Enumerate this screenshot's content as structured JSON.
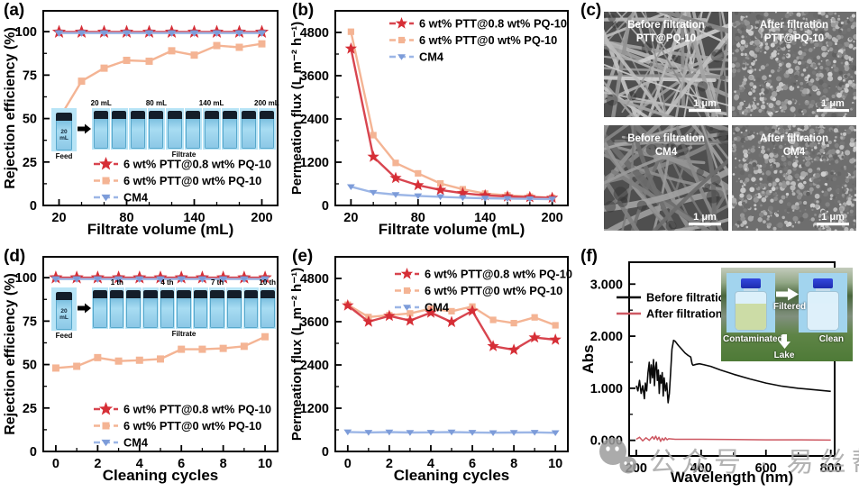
{
  "panels": {
    "a": {
      "label": "(a)"
    },
    "b": {
      "label": "(b)"
    },
    "c": {
      "label": "(c)"
    },
    "d": {
      "label": "(d)"
    },
    "e": {
      "label": "(e)"
    },
    "f": {
      "label": "(f)"
    }
  },
  "legend_labels": {
    "s1": "6 wt% PTT@0.8 wt% PQ-10",
    "s2": "6 wt% PTT@0 wt% PQ-10",
    "s3": "CM4"
  },
  "colors": {
    "red_marker": "#d62e36",
    "red_line": "#d8454f",
    "orange": "#f4b494",
    "blue_marker": "#7d9cd9",
    "blue_line": "#9cb6e6",
    "black": "#0a0a0a",
    "f_red": "#cd5862"
  },
  "chart_data": [
    {
      "id": "a",
      "type": "line",
      "xlabel": "Filtrate volume (mL)",
      "ylabel": "Rejection efficiency (%)",
      "xlim": [
        6,
        214
      ],
      "ylim": [
        0,
        112
      ],
      "xticks": [
        20,
        80,
        140,
        200
      ],
      "xminor": [
        40,
        60,
        100,
        120,
        160,
        180
      ],
      "yticks": [
        0,
        25,
        50,
        75,
        100
      ],
      "yminor": [
        12.5,
        37.5,
        62.5,
        87.5
      ],
      "x": [
        20,
        40,
        60,
        80,
        100,
        120,
        140,
        160,
        180,
        200
      ],
      "series": [
        {
          "name": "6 wt% PTT@0.8 wt% PQ-10",
          "marker": "star",
          "values": [
            99.8,
            99.8,
            99.8,
            99.8,
            99.8,
            99.8,
            99.8,
            99.8,
            99.8,
            99.8
          ]
        },
        {
          "name": "6 wt% PTT@0 wt% PQ-10",
          "marker": "square",
          "values": [
            50,
            71.5,
            79,
            83.5,
            83,
            89,
            86.5,
            92,
            91,
            93
          ]
        },
        {
          "name": "CM4",
          "marker": "tri",
          "values": [
            99.2,
            99.2,
            99.2,
            99.2,
            99.2,
            99.2,
            99.2,
            99.2,
            99.2,
            99.2
          ]
        }
      ],
      "legend_position": "bottom"
    },
    {
      "id": "b",
      "type": "line",
      "xlabel": "Filtrate volume (mL)",
      "ylabel": "Permeation flux (L m⁻² h⁻¹)",
      "xlim": [
        6,
        214
      ],
      "ylim": [
        0,
        5400
      ],
      "xticks": [
        20,
        80,
        140,
        200
      ],
      "xminor": [
        40,
        60,
        100,
        120,
        160,
        180
      ],
      "yticks": [
        0,
        1200,
        2400,
        3600,
        4800
      ],
      "yminor": [
        600,
        1800,
        3000,
        4200
      ],
      "x": [
        20,
        40,
        60,
        80,
        100,
        120,
        140,
        160,
        180,
        200
      ],
      "series": [
        {
          "name": "6 wt% PTT@0.8 wt% PQ-10",
          "marker": "star",
          "values": [
            4350,
            1350,
            760,
            560,
            430,
            340,
            280,
            250,
            230,
            210
          ]
        },
        {
          "name": "6 wt% PTT@0 wt% PQ-10",
          "marker": "square",
          "values": [
            4820,
            1950,
            1180,
            890,
            610,
            450,
            330,
            280,
            245,
            215
          ]
        },
        {
          "name": "CM4",
          "marker": "tri",
          "values": [
            520,
            360,
            300,
            265,
            240,
            215,
            200,
            190,
            182,
            175
          ]
        }
      ],
      "legend_position": "top"
    },
    {
      "id": "d",
      "type": "line",
      "xlabel": "Cleaning cycles",
      "ylabel": "Rejection efficiency (%)",
      "xlim": [
        -0.6,
        10.6
      ],
      "ylim": [
        0,
        112
      ],
      "xticks": [
        0,
        2,
        4,
        6,
        8,
        10
      ],
      "xminor": [
        1,
        3,
        5,
        7,
        9
      ],
      "yticks": [
        0,
        25,
        50,
        75,
        100
      ],
      "yminor": [
        12.5,
        37.5,
        62.5,
        87.5
      ],
      "x": [
        0,
        1,
        2,
        3,
        4,
        5,
        6,
        7,
        8,
        9,
        10
      ],
      "series": [
        {
          "name": "6 wt% PTT@0.8 wt% PQ-10",
          "marker": "star",
          "values": [
            100,
            100,
            100,
            100,
            100,
            100,
            100,
            100,
            100,
            100,
            100
          ]
        },
        {
          "name": "6 wt% PTT@0 wt% PQ-10",
          "marker": "square",
          "values": [
            48,
            49,
            54,
            52,
            52.5,
            53.2,
            58.8,
            58.8,
            59.3,
            60.5,
            66
          ]
        },
        {
          "name": "CM4",
          "marker": "tri",
          "values": [
            99.2,
            99.2,
            99.2,
            99.2,
            99.2,
            99.2,
            99.2,
            99.2,
            99.2,
            99.2,
            99.2
          ]
        }
      ],
      "legend_position": "bottom"
    },
    {
      "id": "e",
      "type": "line",
      "xlabel": "Cleaning cycles",
      "ylabel": "Permeation flux (L m⁻² h⁻¹)",
      "xlim": [
        -0.6,
        10.6
      ],
      "ylim": [
        0,
        5400
      ],
      "xticks": [
        0,
        2,
        4,
        6,
        8,
        10
      ],
      "xminor": [
        1,
        3,
        5,
        7,
        9
      ],
      "yticks": [
        0,
        1200,
        2400,
        3600,
        4800
      ],
      "yminor": [
        600,
        1800,
        3000,
        4200
      ],
      "x": [
        0,
        1,
        2,
        3,
        4,
        5,
        6,
        7,
        8,
        9,
        10
      ],
      "series": [
        {
          "name": "6 wt% PTT@0.8 wt% PQ-10",
          "marker": "star",
          "values": [
            4050,
            3600,
            3760,
            3630,
            3850,
            3590,
            3900,
            2920,
            2820,
            3160,
            3100
          ]
        },
        {
          "name": "6 wt% PTT@0 wt% PQ-10",
          "marker": "square",
          "values": [
            4070,
            3730,
            3780,
            3830,
            3960,
            3890,
            4020,
            3650,
            3560,
            3720,
            3500
          ]
        },
        {
          "name": "CM4",
          "marker": "tri",
          "values": [
            540,
            528,
            538,
            524,
            530,
            538,
            528,
            520,
            524,
            530,
            518
          ]
        }
      ],
      "legend_position": "top"
    },
    {
      "id": "f",
      "type": "line",
      "xlabel": "Wavelength (nm)",
      "ylabel": "Abs",
      "xlim": [
        178,
        812
      ],
      "ylim": [
        -0.3,
        3.42
      ],
      "xticks": [
        200,
        400,
        600,
        800
      ],
      "xminor": [
        300,
        500,
        700
      ],
      "yticks": [
        0,
        1,
        2,
        3
      ],
      "yminor": [
        0.5,
        1.5,
        2.5
      ],
      "ytick_decimals": 3,
      "series": [
        {
          "name": "Before filtration",
          "marker": "none",
          "points": [
            [
              200,
              1.05
            ],
            [
              205,
              0.95
            ],
            [
              210,
              1.15
            ],
            [
              215,
              0.9
            ],
            [
              220,
              1.05
            ],
            [
              225,
              0.8
            ],
            [
              228,
              1.1
            ],
            [
              232,
              0.95
            ],
            [
              236,
              1.3
            ],
            [
              240,
              1.5
            ],
            [
              243,
              1.1
            ],
            [
              246,
              1.45
            ],
            [
              250,
              1.2
            ],
            [
              253,
              1.55
            ],
            [
              256,
              1.05
            ],
            [
              259,
              1.4
            ],
            [
              262,
              1.5
            ],
            [
              265,
              1.15
            ],
            [
              268,
              1.35
            ],
            [
              271,
              0.9
            ],
            [
              274,
              1.25
            ],
            [
              277,
              1.1
            ],
            [
              280,
              1.3
            ],
            [
              283,
              0.85
            ],
            [
              286,
              1.2
            ],
            [
              290,
              0.95
            ],
            [
              294,
              1.1
            ],
            [
              298,
              0.72
            ],
            [
              302,
              0.9
            ],
            [
              306,
              1.3
            ],
            [
              310,
              1.75
            ],
            [
              315,
              1.92
            ],
            [
              320,
              1.9
            ],
            [
              330,
              1.82
            ],
            [
              340,
              1.75
            ],
            [
              350,
              1.68
            ],
            [
              360,
              1.63
            ],
            [
              368,
              1.6
            ],
            [
              372,
              1.47
            ],
            [
              375,
              1.44
            ],
            [
              385,
              1.46
            ],
            [
              395,
              1.47
            ],
            [
              410,
              1.45
            ],
            [
              430,
              1.42
            ],
            [
              460,
              1.35
            ],
            [
              500,
              1.27
            ],
            [
              550,
              1.18
            ],
            [
              600,
              1.1
            ],
            [
              650,
              1.04
            ],
            [
              700,
              1.0
            ],
            [
              750,
              0.97
            ],
            [
              800,
              0.94
            ]
          ]
        },
        {
          "name": "After filtration",
          "marker": "none",
          "points": [
            [
              200,
              0.02
            ],
            [
              210,
              0.06
            ],
            [
              220,
              -0.01
            ],
            [
              230,
              0.05
            ],
            [
              240,
              0.0
            ],
            [
              250,
              0.07
            ],
            [
              255,
              0.02
            ],
            [
              260,
              0.08
            ],
            [
              265,
              0.01
            ],
            [
              270,
              0.06
            ],
            [
              275,
              -0.02
            ],
            [
              280,
              0.04
            ],
            [
              285,
              0.0
            ],
            [
              290,
              0.05
            ],
            [
              295,
              0.01
            ],
            [
              300,
              0.03
            ],
            [
              320,
              0.02
            ],
            [
              400,
              0.02
            ],
            [
              500,
              0.015
            ],
            [
              600,
              0.01
            ],
            [
              700,
              0.01
            ],
            [
              800,
              0.005
            ]
          ]
        }
      ],
      "legend_position": "topleft"
    }
  ],
  "insets": {
    "a": {
      "feed_text": "20 mL",
      "feed_caption": "Feed",
      "row_caption": "Filtrate",
      "n_vials": 10,
      "labels": [
        "20 mL",
        "80 mL",
        "140 mL",
        "200 mL"
      ],
      "label_indices": [
        0,
        3,
        6,
        9
      ]
    },
    "d": {
      "feed_text": "20 mL",
      "feed_caption": "Feed",
      "row_caption": "Filtrate",
      "n_vials": 11,
      "labels": [
        "1 th",
        "4 th",
        "7 th",
        "10 th"
      ],
      "label_indices": [
        1,
        4,
        7,
        10
      ]
    },
    "f": {
      "left_label": "Contaminated",
      "right_label": "Clean",
      "arrow_label": "Filtered",
      "bottom_label": "Lake"
    }
  },
  "sem": {
    "images": [
      {
        "line1": "Before filtration",
        "line2": "PTT@PQ-10",
        "texture": "fibers",
        "scale": "1 μm"
      },
      {
        "line1": "After filtration",
        "line2": "PTT@PQ-10",
        "texture": "grains",
        "scale": "1 μm"
      },
      {
        "line1": "Before filtration",
        "line2": "CM4",
        "texture": "web",
        "scale": "1 μm"
      },
      {
        "line1": "After filtration",
        "line2": "CM4",
        "texture": "grains",
        "scale": "1 μm"
      }
    ]
  },
  "watermark": {
    "text": "公众号 · 易丝帮"
  }
}
